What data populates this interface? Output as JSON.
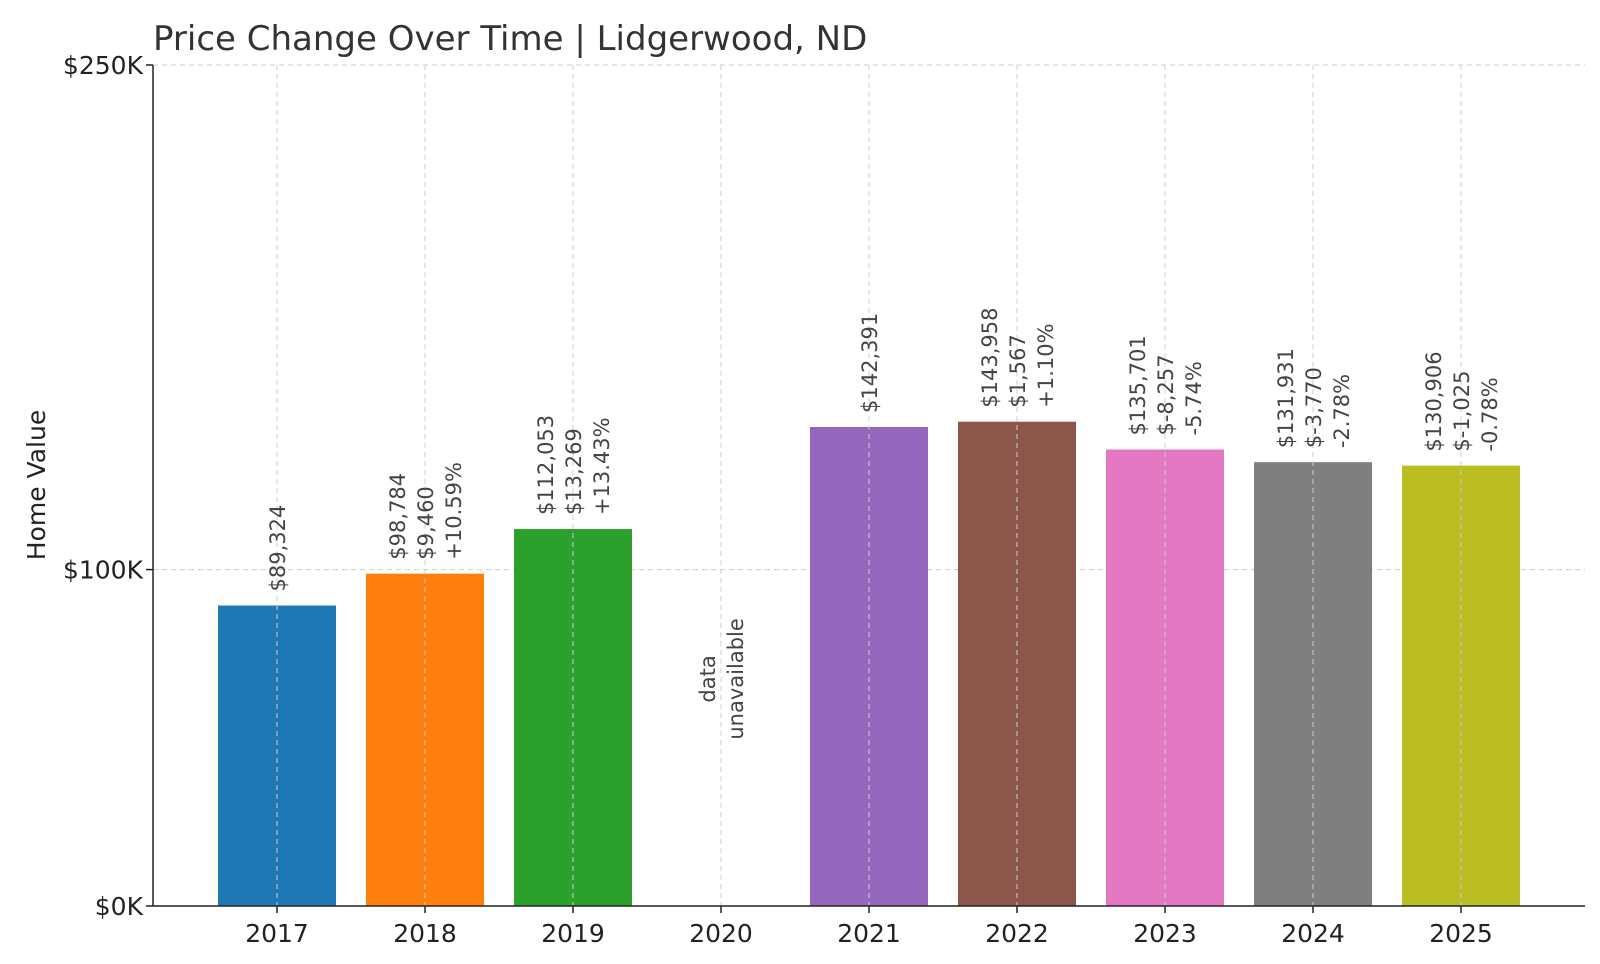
{
  "chart_data": {
    "type": "bar",
    "title": "Price Change Over Time | Lidgerwood, ND",
    "xlabel": "",
    "ylabel": "Home Value",
    "ylim": [
      0,
      250000
    ],
    "yticks": [
      {
        "value": 0,
        "label": "$0K"
      },
      {
        "value": 100000,
        "label": "$100K"
      },
      {
        "value": 250000,
        "label": "$250K"
      }
    ],
    "grid": true,
    "categories": [
      "2017",
      "2018",
      "2019",
      "2020",
      "2021",
      "2022",
      "2023",
      "2024",
      "2025"
    ],
    "values": [
      89324,
      98784,
      112053,
      null,
      142391,
      143958,
      135701,
      131931,
      130906
    ],
    "colors": [
      "#1f77b4",
      "#ff7f0e",
      "#2ca02c",
      "#d62728",
      "#9467bd",
      "#8c564b",
      "#e377c2",
      "#7f7f7f",
      "#bcbd22"
    ],
    "annotations": [
      [
        "$89,324"
      ],
      [
        "$98,784",
        "$9,460",
        "+10.59%"
      ],
      [
        "$112,053",
        "$13,269",
        "+13.43%"
      ],
      [
        "data",
        "unavailable"
      ],
      [
        "$142,391"
      ],
      [
        "$143,958",
        "$1,567",
        "+1.10%"
      ],
      [
        "$135,701",
        "$-8,257",
        "-5.74%"
      ],
      [
        "$131,931",
        "$-3,770",
        "-2.78%"
      ],
      [
        "$130,906",
        "$-1,025",
        "-0.78%"
      ]
    ]
  }
}
